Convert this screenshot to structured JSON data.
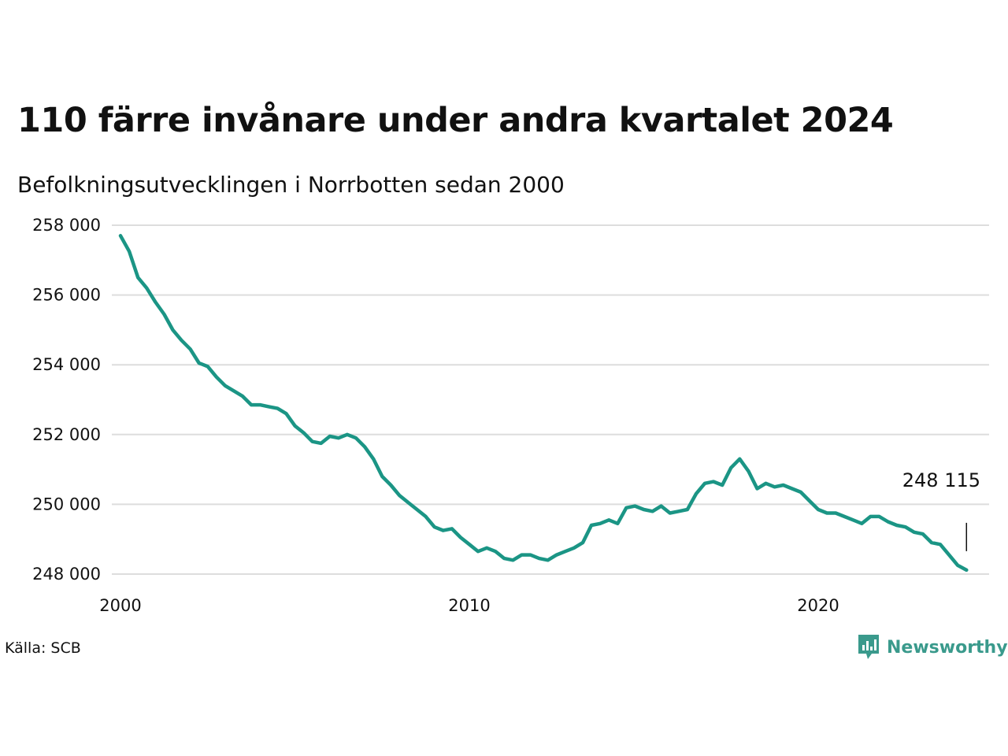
{
  "title": "110 färre invånare under andra kvartalet 2024",
  "subtitle": "Befolkningsutvecklingen i Norrbotten sedan 2000",
  "source": "Källa: SCB",
  "brand": {
    "name": "Newsworthy",
    "icon": "newsworthy-logo-icon",
    "color": "#3a9a8c"
  },
  "colors": {
    "line": "#1b9585",
    "grid": "#dddddd",
    "annotation_line": "#111111"
  },
  "chart_data": {
    "type": "line",
    "title": "110 färre invånare under andra kvartalet 2024",
    "subtitle": "Befolkningsutvecklingen i Norrbotten sedan 2000",
    "xlabel": "",
    "ylabel": "",
    "x_ticks": [
      2000,
      2010,
      2020
    ],
    "x_tick_labels": [
      "2000",
      "2010",
      "2020"
    ],
    "y_ticks": [
      248000,
      250000,
      252000,
      254000,
      256000,
      258000
    ],
    "y_tick_labels": [
      "248 000",
      "250 000",
      "252 000",
      "254 000",
      "256 000",
      "258 000"
    ],
    "xlim": [
      2000,
      2025
    ],
    "ylim": [
      247700,
      258300
    ],
    "grid": "horizontal",
    "legend": "none",
    "annotation": {
      "label": "248 115",
      "x": 2024.25,
      "value": 248115
    },
    "series": [
      {
        "x": [
          2000.0,
          2000.25,
          2000.5,
          2000.75,
          2001.0,
          2001.25,
          2001.5,
          2001.75,
          2002.0,
          2002.25,
          2002.5,
          2002.75,
          2003.0,
          2003.25,
          2003.5,
          2003.75,
          2004.0,
          2004.25,
          2004.5,
          2004.75,
          2005.0,
          2005.25,
          2005.5,
          2005.75,
          2006.0,
          2006.25,
          2006.5,
          2006.75,
          2007.0,
          2007.25,
          2007.5,
          2007.75,
          2008.0,
          2008.25,
          2008.5,
          2008.75,
          2009.0,
          2009.25,
          2009.5,
          2009.75,
          2010.0,
          2010.25,
          2010.5,
          2010.75,
          2011.0,
          2011.25,
          2011.5,
          2011.75,
          2012.0,
          2012.25,
          2012.5,
          2012.75,
          2013.0,
          2013.25,
          2013.5,
          2013.75,
          2014.0,
          2014.25,
          2014.5,
          2014.75,
          2015.0,
          2015.25,
          2015.5,
          2015.75,
          2016.0,
          2016.25,
          2016.5,
          2016.75,
          2017.0,
          2017.25,
          2017.5,
          2017.75,
          2018.0,
          2018.25,
          2018.5,
          2018.75,
          2019.0,
          2019.25,
          2019.5,
          2019.75,
          2020.0,
          2020.25,
          2020.5,
          2020.75,
          2021.0,
          2021.25,
          2021.5,
          2021.75,
          2022.0,
          2022.25,
          2022.5,
          2022.75,
          2023.0,
          2023.25,
          2023.5,
          2023.75,
          2024.0,
          2024.25
        ],
        "values": [
          257700,
          257250,
          256500,
          256200,
          255800,
          255450,
          255000,
          254700,
          254450,
          254050,
          253950,
          253650,
          253400,
          253250,
          253100,
          252850,
          252850,
          252800,
          252750,
          252600,
          252250,
          252050,
          251800,
          251750,
          251950,
          251900,
          252000,
          251900,
          251650,
          251300,
          250800,
          250550,
          250250,
          250050,
          249850,
          249650,
          249350,
          249250,
          249300,
          249050,
          248850,
          248650,
          248750,
          248650,
          248450,
          248400,
          248550,
          248550,
          248450,
          248400,
          248550,
          248650,
          248750,
          248900,
          249400,
          249450,
          249550,
          249450,
          249900,
          249950,
          249850,
          249800,
          249950,
          249750,
          249800,
          249850,
          250300,
          250600,
          250650,
          250550,
          251050,
          251300,
          250950,
          250450,
          250600,
          250500,
          250550,
          250450,
          250350,
          250100,
          249850,
          249750,
          249750,
          249650,
          249550,
          249450,
          249650,
          249650,
          249500,
          249400,
          249350,
          249200,
          249150,
          248900,
          248850,
          248550,
          248250,
          248115
        ]
      }
    ]
  }
}
